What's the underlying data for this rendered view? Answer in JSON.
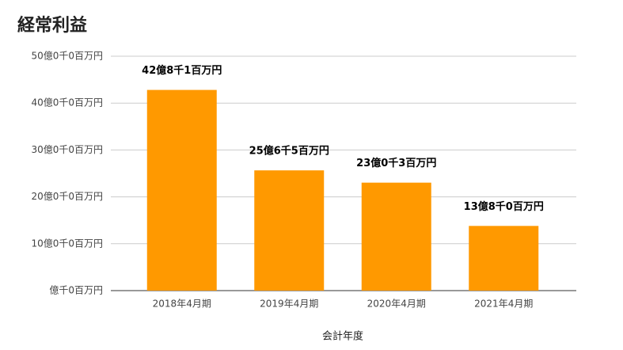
{
  "chart_data": {
    "type": "bar",
    "title": "経常利益",
    "x_label": "会計年度",
    "categories": [
      "2018年4月期",
      "2019年4月期",
      "2020年4月期",
      "2021年4月期"
    ],
    "values": [
      4281,
      2565,
      2303,
      1380
    ],
    "value_labels": [
      "42億8千1百万円",
      "25億6千5百万円",
      "23億0千3百万円",
      "13億8千0百万円"
    ],
    "color": "#ff9900",
    "ylim": [
      0,
      5000
    ],
    "yticks": [
      {
        "value": 0,
        "label": "億千0百万円"
      },
      {
        "value": 1000,
        "label": "10億0千0百万円"
      },
      {
        "value": 2000,
        "label": "20億0千0百万円"
      },
      {
        "value": 3000,
        "label": "30億0千0百万円"
      },
      {
        "value": 4000,
        "label": "40億0千0百万円"
      },
      {
        "value": 5000,
        "label": "50億0千0百万円"
      }
    ],
    "grid": true
  }
}
